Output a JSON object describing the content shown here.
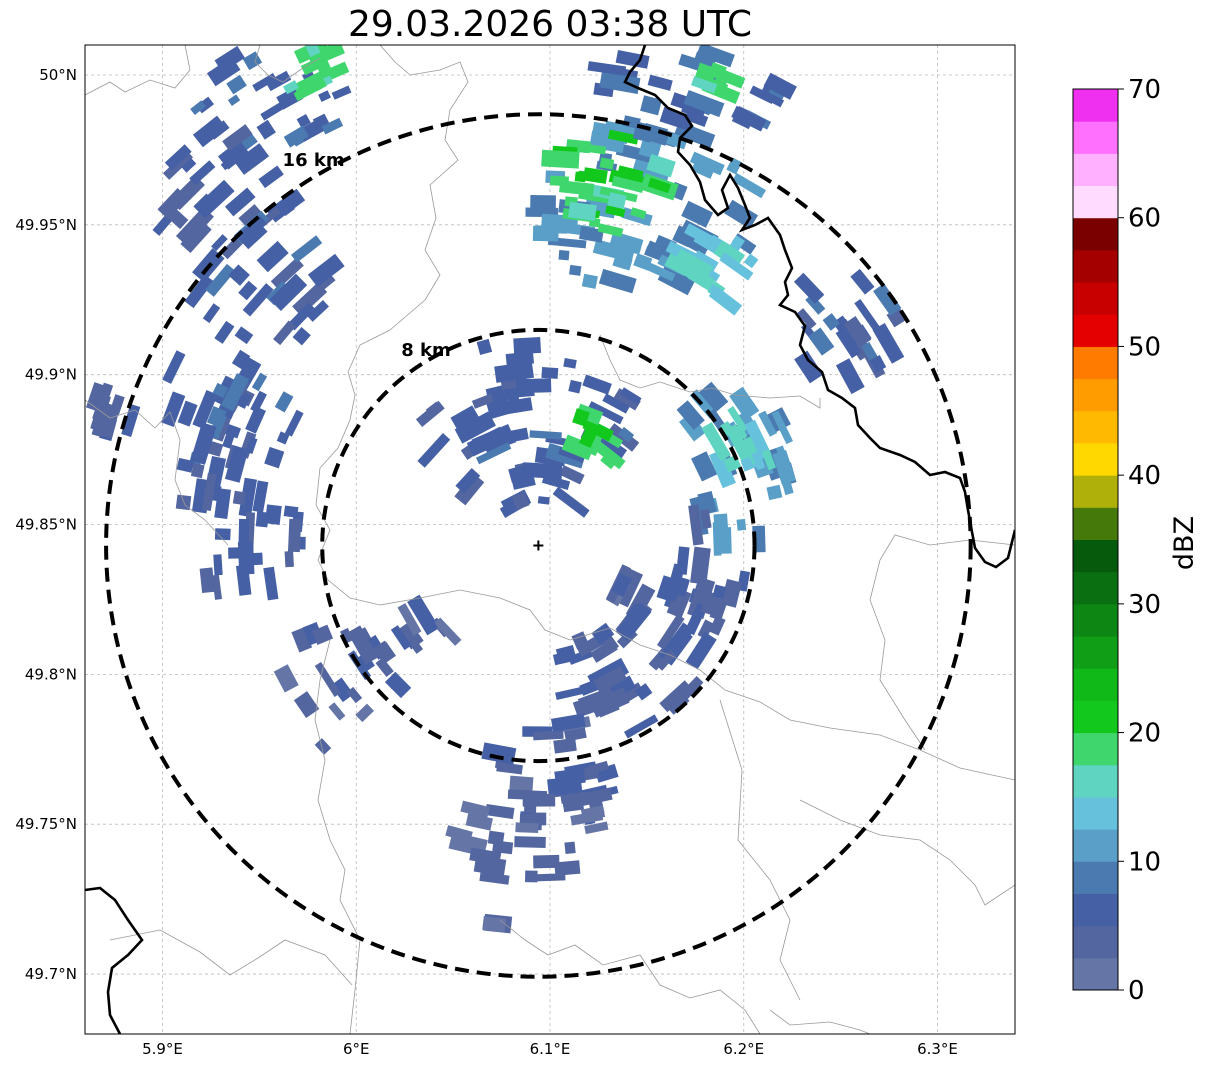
{
  "title": "29.03.2026 03:38 UTC",
  "map": {
    "lon_range": [
      5.86,
      6.34
    ],
    "lat_range": [
      49.68,
      50.01
    ],
    "lon_ticks": [
      {
        "value": 5.9,
        "label": "5.9°E"
      },
      {
        "value": 6.0,
        "label": "6°E"
      },
      {
        "value": 6.1,
        "label": "6.1°E"
      },
      {
        "value": 6.2,
        "label": "6.2°E"
      },
      {
        "value": 6.3,
        "label": "6.3°E"
      }
    ],
    "lat_ticks": [
      {
        "value": 50.0,
        "label": "50°N"
      },
      {
        "value": 49.95,
        "label": "49.95°N"
      },
      {
        "value": 49.9,
        "label": "49.9°N"
      },
      {
        "value": 49.85,
        "label": "49.85°N"
      },
      {
        "value": 49.8,
        "label": "49.8°N"
      },
      {
        "value": 49.75,
        "label": "49.75°N"
      },
      {
        "value": 49.7,
        "label": "49.7°N"
      }
    ],
    "radar_center": {
      "lon": 6.094,
      "lat": 49.843
    },
    "range_rings": [
      {
        "km": 8,
        "label": "8 km"
      },
      {
        "km": 16,
        "label": "16 km"
      }
    ]
  },
  "colorbar": {
    "label": "dBZ",
    "min": 0,
    "max": 70,
    "ticks": [
      0,
      10,
      20,
      30,
      40,
      50,
      60,
      70
    ],
    "colors": [
      "#6475a6",
      "#5466a0",
      "#4560a5",
      "#4b7ab0",
      "#599fc8",
      "#66c1dc",
      "#5fd4c0",
      "#3fd66e",
      "#12c81c",
      "#10b818",
      "#0f9e16",
      "#0e8613",
      "#0a6f10",
      "#065a0c",
      "#457a0b",
      "#b0b00a",
      "#ffd800",
      "#ffba00",
      "#ff9c00",
      "#ff7b00",
      "#e50000",
      "#c90000",
      "#a50000",
      "#7a0000",
      "#ffdcff",
      "#ffb0ff",
      "#ff70ff",
      "#f030f0"
    ]
  },
  "precip_blobs": [
    {
      "lon": 6.15,
      "lat": 49.955,
      "rlon": 0.055,
      "rlat": 0.03,
      "dbz": 10,
      "n": 60
    },
    {
      "lon": 6.13,
      "lat": 49.965,
      "rlon": 0.03,
      "rlat": 0.018,
      "dbz": 19,
      "n": 30
    },
    {
      "lon": 6.185,
      "lat": 49.935,
      "rlon": 0.02,
      "rlat": 0.012,
      "dbz": 15,
      "n": 16
    },
    {
      "lon": 6.17,
      "lat": 49.995,
      "rlon": 0.05,
      "rlat": 0.017,
      "dbz": 7,
      "n": 30
    },
    {
      "lon": 6.18,
      "lat": 49.998,
      "rlon": 0.012,
      "rlat": 0.008,
      "dbz": 18,
      "n": 8
    },
    {
      "lon": 5.955,
      "lat": 49.99,
      "rlon": 0.04,
      "rlat": 0.02,
      "dbz": 7,
      "n": 25
    },
    {
      "lon": 5.975,
      "lat": 50.0,
      "rlon": 0.018,
      "rlat": 0.01,
      "dbz": 18,
      "n": 10
    },
    {
      "lon": 5.93,
      "lat": 49.96,
      "rlon": 0.035,
      "rlat": 0.02,
      "dbz": 5,
      "n": 22
    },
    {
      "lon": 5.955,
      "lat": 49.93,
      "rlon": 0.04,
      "rlat": 0.02,
      "dbz": 6,
      "n": 25
    },
    {
      "lon": 5.935,
      "lat": 49.89,
      "rlon": 0.035,
      "rlat": 0.025,
      "dbz": 6,
      "n": 30
    },
    {
      "lon": 5.94,
      "lat": 49.855,
      "rlon": 0.035,
      "rlat": 0.03,
      "dbz": 5,
      "n": 34
    },
    {
      "lon": 5.875,
      "lat": 49.89,
      "rlon": 0.012,
      "rlat": 0.01,
      "dbz": 5,
      "n": 8
    },
    {
      "lon": 5.99,
      "lat": 49.795,
      "rlon": 0.035,
      "rlat": 0.02,
      "dbz": 4,
      "n": 22
    },
    {
      "lon": 6.035,
      "lat": 49.817,
      "rlon": 0.015,
      "rlat": 0.008,
      "dbz": 4,
      "n": 8
    },
    {
      "lon": 6.09,
      "lat": 49.885,
      "rlon": 0.055,
      "rlat": 0.03,
      "dbz": 6,
      "n": 55
    },
    {
      "lon": 6.125,
      "lat": 49.88,
      "rlon": 0.012,
      "rlat": 0.01,
      "dbz": 20,
      "n": 10
    },
    {
      "lon": 6.195,
      "lat": 49.87,
      "rlon": 0.03,
      "rlat": 0.03,
      "dbz": 10,
      "n": 34
    },
    {
      "lon": 6.2,
      "lat": 49.875,
      "rlon": 0.015,
      "rlat": 0.012,
      "dbz": 15,
      "n": 12
    },
    {
      "lon": 6.25,
      "lat": 49.915,
      "rlon": 0.03,
      "rlat": 0.018,
      "dbz": 6,
      "n": 22
    },
    {
      "lon": 6.17,
      "lat": 49.83,
      "rlon": 0.035,
      "rlat": 0.025,
      "dbz": 4,
      "n": 32
    },
    {
      "lon": 6.14,
      "lat": 49.8,
      "rlon": 0.035,
      "rlat": 0.02,
      "dbz": 5,
      "n": 30
    },
    {
      "lon": 6.1,
      "lat": 49.765,
      "rlon": 0.03,
      "rlat": 0.02,
      "dbz": 4,
      "n": 28
    },
    {
      "lon": 6.09,
      "lat": 49.745,
      "rlon": 0.04,
      "rlat": 0.015,
      "dbz": 3,
      "n": 24
    },
    {
      "lon": 6.07,
      "lat": 49.715,
      "rlon": 0.004,
      "rlat": 0.003,
      "dbz": 4,
      "n": 2
    }
  ]
}
